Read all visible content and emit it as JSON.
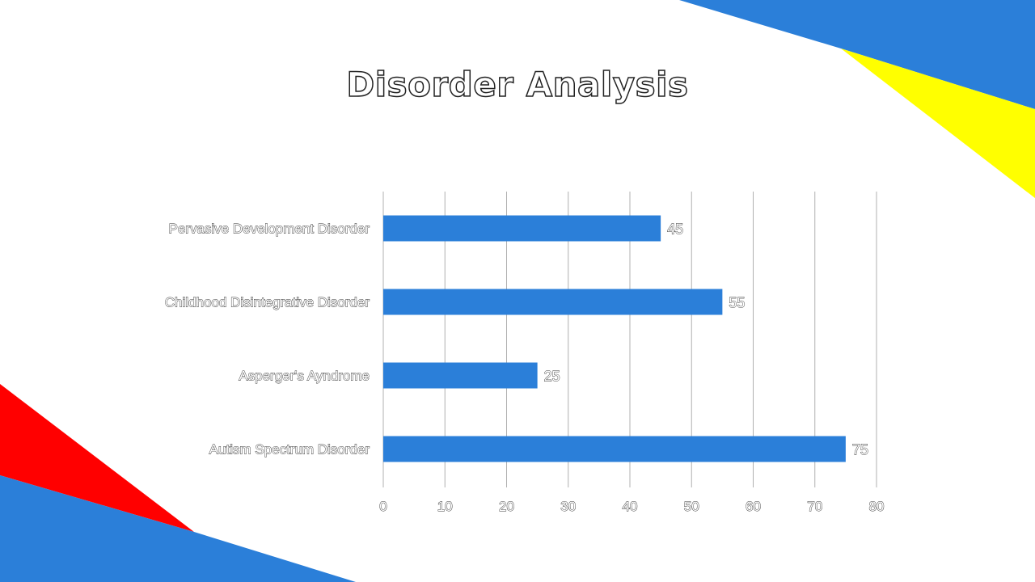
{
  "slide": {
    "title": "Disorder Analysis"
  },
  "colors": {
    "bar": "#2B7FD9",
    "decor_blue": "#2B7FD9",
    "decor_yellow": "#FFFF00",
    "decor_red": "#FF0000",
    "gridline": "#B0B0B0",
    "label_outline": "#333333"
  },
  "chart_data": {
    "type": "bar",
    "orientation": "horizontal",
    "title": "",
    "xlabel": "",
    "ylabel": "",
    "categories": [
      "Pervasive Development Disorder",
      "Childhood Disintegrative Disorder",
      "Asperger's Ayndrome",
      "Autism Spectrum Disorder"
    ],
    "values": [
      45,
      55,
      25,
      75
    ],
    "xlim": [
      0,
      80
    ],
    "x_ticks": [
      0,
      10,
      20,
      30,
      40,
      50,
      60,
      70,
      80
    ],
    "data_labels": true,
    "grid": true,
    "legend": "none"
  }
}
